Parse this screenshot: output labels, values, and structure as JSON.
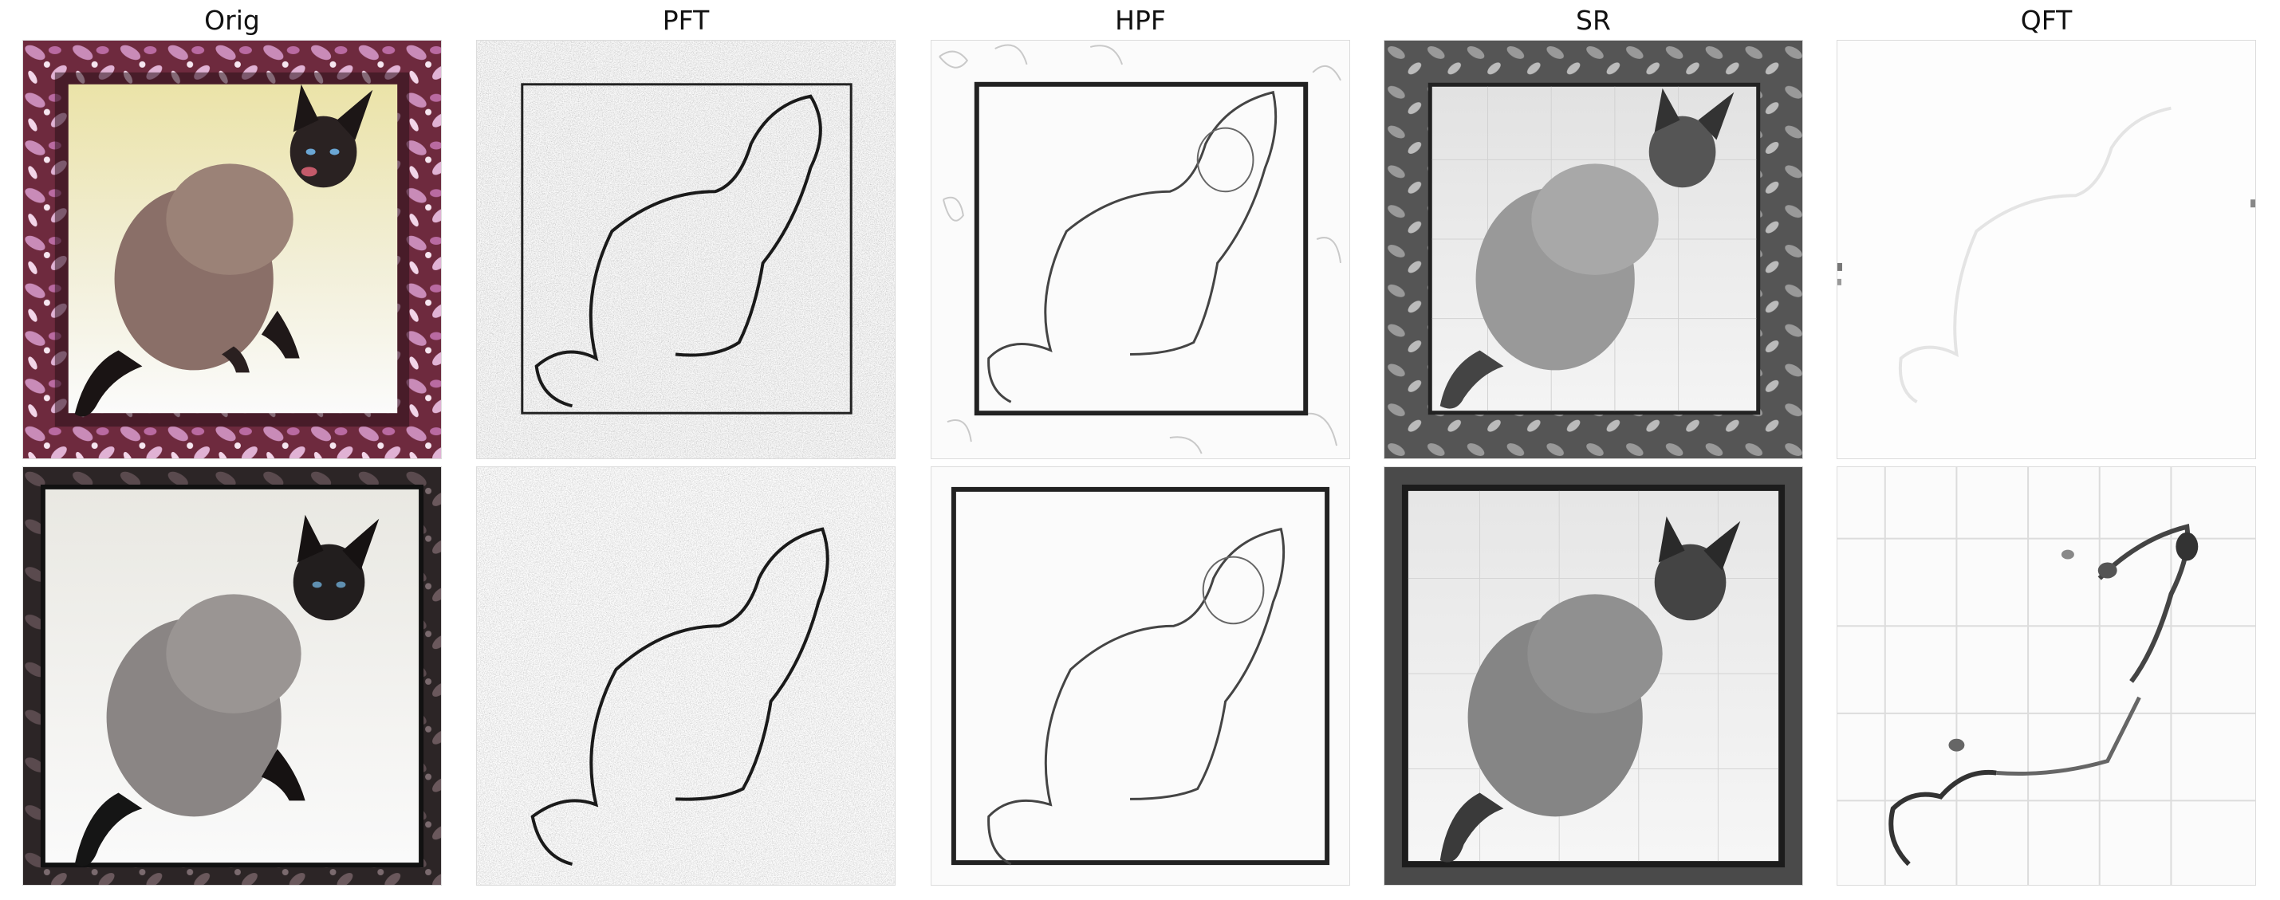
{
  "figure": {
    "columns": [
      {
        "key": "orig",
        "title": "Orig"
      },
      {
        "key": "pft",
        "title": "PFT"
      },
      {
        "key": "hpf",
        "title": "HPF"
      },
      {
        "key": "sr",
        "title": "SR"
      },
      {
        "key": "qft",
        "title": "QFT"
      }
    ],
    "rows": [
      {
        "key": "row-1",
        "subject": "cat on patterned frame, color"
      },
      {
        "key": "row-2",
        "subject": "cat on dark frame, desaturated"
      }
    ]
  }
}
